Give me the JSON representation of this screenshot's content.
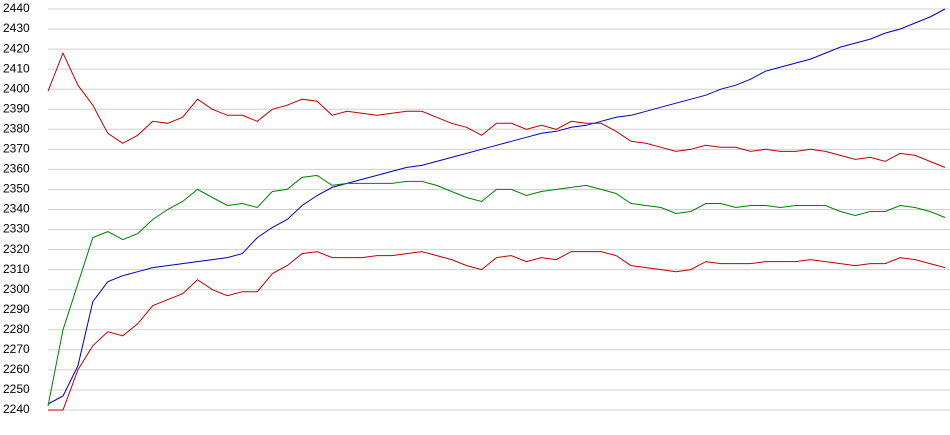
{
  "chart_data": {
    "type": "line",
    "categories": [
      null,
      null,
      null,
      null,
      null,
      null,
      null,
      null,
      null,
      null,
      null,
      null,
      null,
      null,
      null,
      null,
      null,
      null,
      null,
      null,
      null,
      null,
      null,
      null,
      null,
      null,
      null,
      null,
      null,
      null,
      null,
      null,
      null,
      null,
      null,
      null,
      null,
      null,
      null,
      null,
      null,
      null,
      null,
      null,
      null,
      null,
      null,
      null,
      null,
      null,
      null,
      null,
      null,
      null,
      null,
      null,
      null,
      null,
      null,
      null,
      null
    ],
    "series": [
      {
        "color": "#0000c0",
        "values": [
          2243,
          2247,
          2262,
          2294,
          2304,
          2307,
          2309,
          2311,
          2312,
          2313,
          2314,
          2315,
          2316,
          2318,
          2326,
          2331,
          2335,
          2342,
          2347,
          2351,
          2353,
          2355,
          2357,
          2359,
          2361,
          2362,
          2364,
          2366,
          2368,
          2370,
          2372,
          2374,
          2376,
          2378,
          2379,
          2381,
          2382,
          2384,
          2386,
          2387,
          2389,
          2391,
          2393,
          2395,
          2397,
          2400,
          2402,
          2405,
          2409,
          2411,
          2413,
          2415,
          2418,
          2421,
          2423,
          2425,
          2428,
          2430,
          2433,
          2436,
          2440
        ]
      },
      {
        "color": "#c00000",
        "values": [
          2399,
          2418,
          2402,
          2392,
          2378,
          2373,
          2377,
          2384,
          2383,
          2386,
          2395,
          2390,
          2387,
          2387,
          2384,
          2390,
          2392,
          2395,
          2394,
          2387,
          2389,
          2388,
          2387,
          2388,
          2389,
          2389,
          2386,
          2383,
          2381,
          2377,
          2383,
          2383,
          2380,
          2382,
          2380,
          2384,
          2383,
          2383,
          2379,
          2374,
          2373,
          2371,
          2369,
          2370,
          2372,
          2371,
          2371,
          2369,
          2370,
          2369,
          2369,
          2370,
          2369,
          2367,
          2365,
          2366,
          2364,
          2368,
          2367,
          2364,
          2361
        ]
      },
      {
        "color": "#008000",
        "values": [
          2242,
          2280,
          2303,
          2326,
          2329,
          2325,
          2328,
          2335,
          2340,
          2344,
          2350,
          2346,
          2342,
          2343,
          2341,
          2349,
          2350,
          2356,
          2357,
          2352,
          2353,
          2353,
          2353,
          2353,
          2354,
          2354,
          2352,
          2349,
          2346,
          2344,
          2350,
          2350,
          2347,
          2349,
          2350,
          2351,
          2352,
          2350,
          2348,
          2343,
          2342,
          2341,
          2338,
          2339,
          2343,
          2343,
          2341,
          2342,
          2342,
          2341,
          2342,
          2342,
          2342,
          2339,
          2337,
          2339,
          2339,
          2342,
          2341,
          2339,
          2336
        ]
      },
      {
        "color": "#c00000",
        "values": [
          2240,
          2240,
          2260,
          2272,
          2279,
          2277,
          2283,
          2292,
          2295,
          2298,
          2305,
          2300,
          2297,
          2299,
          2299,
          2308,
          2312,
          2318,
          2319,
          2316,
          2316,
          2316,
          2317,
          2317,
          2318,
          2319,
          2317,
          2315,
          2312,
          2310,
          2316,
          2317,
          2314,
          2316,
          2315,
          2319,
          2319,
          2319,
          2317,
          2312,
          2311,
          2310,
          2309,
          2310,
          2314,
          2313,
          2313,
          2313,
          2314,
          2314,
          2314,
          2315,
          2314,
          2313,
          2312,
          2313,
          2313,
          2316,
          2315,
          2313,
          2311
        ]
      }
    ],
    "ylim": [
      2240,
      2440
    ],
    "yticks": [
      2240,
      2250,
      2260,
      2270,
      2280,
      2290,
      2300,
      2310,
      2320,
      2330,
      2340,
      2350,
      2360,
      2370,
      2380,
      2390,
      2400,
      2410,
      2420,
      2430,
      2440
    ],
    "grid": true
  }
}
